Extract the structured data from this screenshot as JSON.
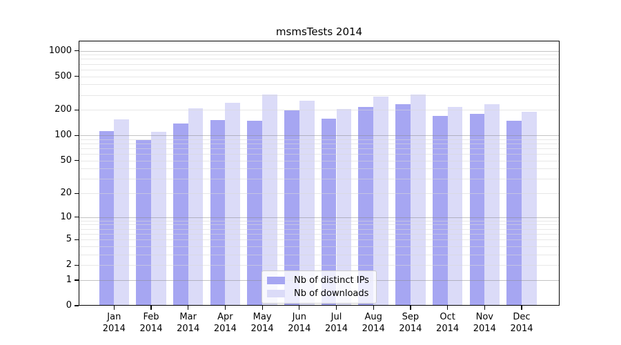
{
  "chart_data": {
    "type": "bar",
    "title": "msmsTests 2014",
    "categories": [
      "Jan",
      "Feb",
      "Mar",
      "Apr",
      "May",
      "Jun",
      "Jul",
      "Aug",
      "Sep",
      "Oct",
      "Nov",
      "Dec"
    ],
    "x_year": "2014",
    "series": [
      {
        "name": "Nb of distinct IPs",
        "color": "#a6a6f2",
        "values": [
          112,
          88,
          139,
          152,
          148,
          198,
          158,
          216,
          233,
          170,
          181,
          148
        ]
      },
      {
        "name": "Nb of downloads",
        "color": "#dbdbf8",
        "values": [
          156,
          110,
          209,
          245,
          302,
          258,
          205,
          290,
          302,
          219,
          236,
          189
        ]
      }
    ],
    "y_axis": {
      "scale": "log1p",
      "tick_values": [
        0,
        1,
        2,
        5,
        10,
        20,
        50,
        100,
        200,
        500,
        1000
      ],
      "top_value": 1300
    },
    "gridlines": {
      "major": [
        1,
        10,
        100,
        1000
      ],
      "minor": [
        2,
        3,
        4,
        5,
        6,
        7,
        8,
        9,
        20,
        30,
        40,
        50,
        60,
        70,
        80,
        90,
        200,
        300,
        400,
        500,
        600,
        700,
        800,
        900
      ]
    },
    "legend_position": "lower-center",
    "grid": true
  }
}
